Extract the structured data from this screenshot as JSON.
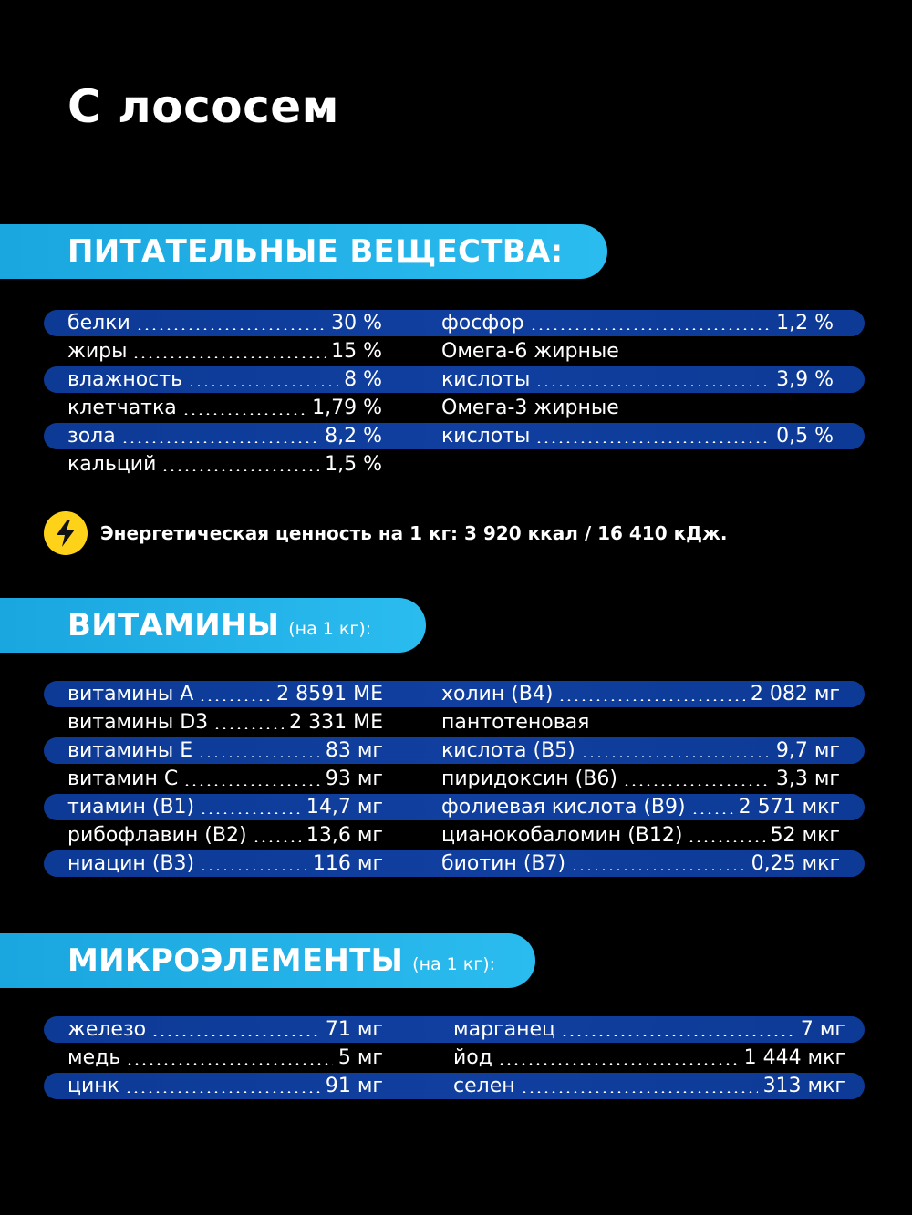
{
  "title": "С лососем",
  "sections": {
    "nutrients": {
      "title": "ПИТАТЕЛЬНЫЕ ВЕЩЕСТВА:",
      "subtitle": ""
    },
    "vitamins": {
      "title": "ВИТАМИНЫ",
      "subtitle": "(на 1 кг):"
    },
    "minerals": {
      "title": "МИКРОЭЛЕМЕНТЫ",
      "subtitle": "(на 1 кг):"
    }
  },
  "nutrients": {
    "left": [
      {
        "label": "белки",
        "value": "30 %"
      },
      {
        "label": "жиры",
        "value": "15 %"
      },
      {
        "label": "влажность",
        "value": "8 %"
      },
      {
        "label": "клетчатка",
        "value": "1,79 %"
      },
      {
        "label": "зола",
        "value": "8,2 %"
      },
      {
        "label": "кальций",
        "value": "1,5 %"
      }
    ],
    "right": [
      {
        "label": "фосфор",
        "value": "1,2 %"
      },
      {
        "label": "Омега-6 жирные",
        "value": ""
      },
      {
        "label": "кислоты",
        "value": "3,9 %"
      },
      {
        "label": "Омега-3 жирные",
        "value": ""
      },
      {
        "label": "кислоты",
        "value": "0,5 %"
      }
    ]
  },
  "energy": {
    "icon": "lightning-icon",
    "text": "Энергетическая ценность на 1 кг: 3 920 ккал / 16 410 кДж."
  },
  "vitamins": {
    "left": [
      {
        "label": "витамины А",
        "value": "2 8591 МЕ"
      },
      {
        "label": "витамины D3",
        "value": "2 331 МЕ"
      },
      {
        "label": "витамины Е",
        "value": "83 мг"
      },
      {
        "label": "витамин С",
        "value": "93 мг"
      },
      {
        "label": "тиамин (В1)",
        "value": "14,7 мг"
      },
      {
        "label": "рибофлавин (В2)",
        "value": "13,6 мг"
      },
      {
        "label": "ниацин (В3)",
        "value": "116 мг"
      }
    ],
    "right": [
      {
        "label": "холин (В4)",
        "value": "2 082 мг"
      },
      {
        "label": "пантотеновая",
        "value": ""
      },
      {
        "label": "кислота (В5)",
        "value": "9,7 мг"
      },
      {
        "label": "пиридоксин (В6)",
        "value": "3,3 мг"
      },
      {
        "label": "фолиевая кислота (В9)",
        "value": "2 571 мкг"
      },
      {
        "label": "цианокобаломин (В12)",
        "value": "52 мкг"
      },
      {
        "label": "биотин (В7)",
        "value": "0,25 мкг"
      }
    ]
  },
  "minerals": {
    "left": [
      {
        "label": "железо",
        "value": "71 мг"
      },
      {
        "label": "медь",
        "value": "5 мг"
      },
      {
        "label": "цинк",
        "value": "91 мг"
      }
    ],
    "right": [
      {
        "label": "марганец",
        "value": "7 мг"
      },
      {
        "label": "йод",
        "value": "1 444 мкг"
      },
      {
        "label": "селен",
        "value": "313 мкг"
      }
    ]
  },
  "colors": {
    "background": "#000000",
    "banner": "#22b0e6",
    "row_highlight": "#0f3d9c",
    "energy_icon": "#ffd21a"
  }
}
